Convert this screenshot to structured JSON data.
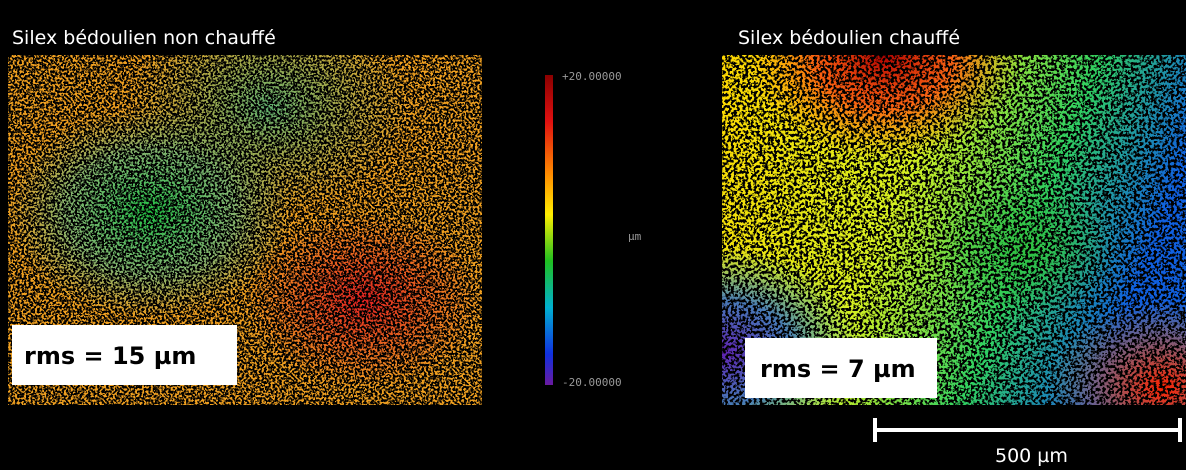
{
  "panels": [
    {
      "title": "Silex bédoulien non chauffé",
      "rms": "rms = 15 µm"
    },
    {
      "title": "Silex bédoulien chauffé",
      "rms": "rms = 7 µm"
    }
  ],
  "colorbar": {
    "max": "+20.00000",
    "unit": "µm",
    "min": "-20.00000"
  },
  "scale_bar": {
    "label": "500 µm"
  }
}
